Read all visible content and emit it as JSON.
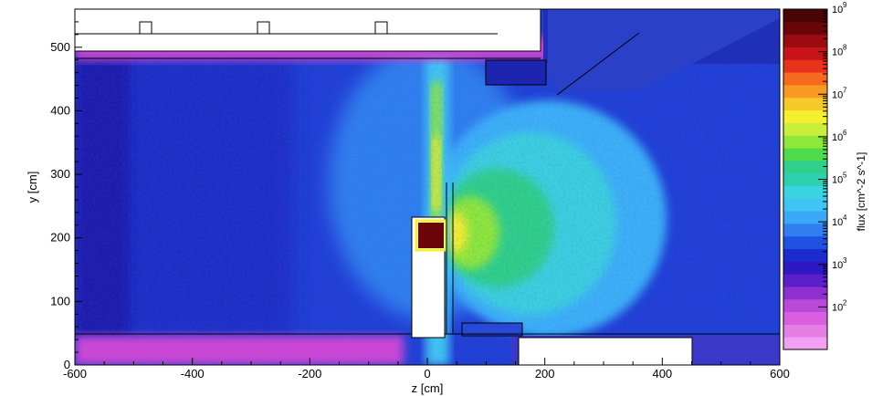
{
  "chart_data": {
    "type": "heatmap",
    "title": "",
    "xlabel": "z [cm]",
    "ylabel": "y [cm]",
    "xlim": [
      -600,
      600
    ],
    "ylim": [
      0,
      560
    ],
    "x_ticks": [
      -600,
      -400,
      -200,
      0,
      200,
      400,
      600
    ],
    "x_tick_labels": [
      "-600",
      "-400",
      "-200",
      "0",
      "200",
      "400",
      "600"
    ],
    "y_ticks": [
      0,
      100,
      200,
      300,
      400,
      500
    ],
    "y_tick_labels": [
      "0",
      "100",
      "200",
      "300",
      "400",
      "500"
    ],
    "colorbar": {
      "label": "flux [cm^-2 s^-1]",
      "scale": "log",
      "range": [
        10,
        1000000000
      ],
      "tick_exponents": [
        2,
        3,
        4,
        5,
        6,
        7,
        8,
        9
      ],
      "tick_base": "10",
      "colors": [
        "#f2a0f2",
        "#e57fe5",
        "#d95fe0",
        "#b94ad8",
        "#8f2fd0",
        "#5a1fc8",
        "#2e18c2",
        "#1c2bd0",
        "#1f52e0",
        "#2f7ff0",
        "#3aa8f8",
        "#3fc4f4",
        "#3ad3e0",
        "#2fd0b0",
        "#2ed08a",
        "#4fdc4c",
        "#8ee83a",
        "#c8f03a",
        "#f4f02e",
        "#f8c828",
        "#f89a22",
        "#f56a1e",
        "#e8321a",
        "#c81418",
        "#9a0c10",
        "#6a060a",
        "#4a0306"
      ]
    },
    "colorbar_ticks": [
      {
        "base": "10",
        "exp": "2"
      },
      {
        "base": "10",
        "exp": "3"
      },
      {
        "base": "10",
        "exp": "4"
      },
      {
        "base": "10",
        "exp": "5"
      },
      {
        "base": "10",
        "exp": "6"
      },
      {
        "base": "10",
        "exp": "7"
      },
      {
        "base": "10",
        "exp": "8"
      },
      {
        "base": "10",
        "exp": "9"
      }
    ],
    "regions": [
      {
        "name": "main-cavity-background",
        "level": 4.0
      },
      {
        "name": "left-dense-region",
        "level": 3.9
      },
      {
        "name": "central-beam-column",
        "level": 5.8
      },
      {
        "name": "source-hotspot",
        "level": 9.0
      },
      {
        "name": "right-lobe-outer",
        "level": 4.3
      },
      {
        "name": "right-lobe-inner",
        "level": 5.0
      },
      {
        "name": "right-lobe-core",
        "level": 5.8
      },
      {
        "name": "ceiling-shielding",
        "level": 2.0
      },
      {
        "name": "floor-shielding",
        "level": 2.2
      }
    ]
  }
}
